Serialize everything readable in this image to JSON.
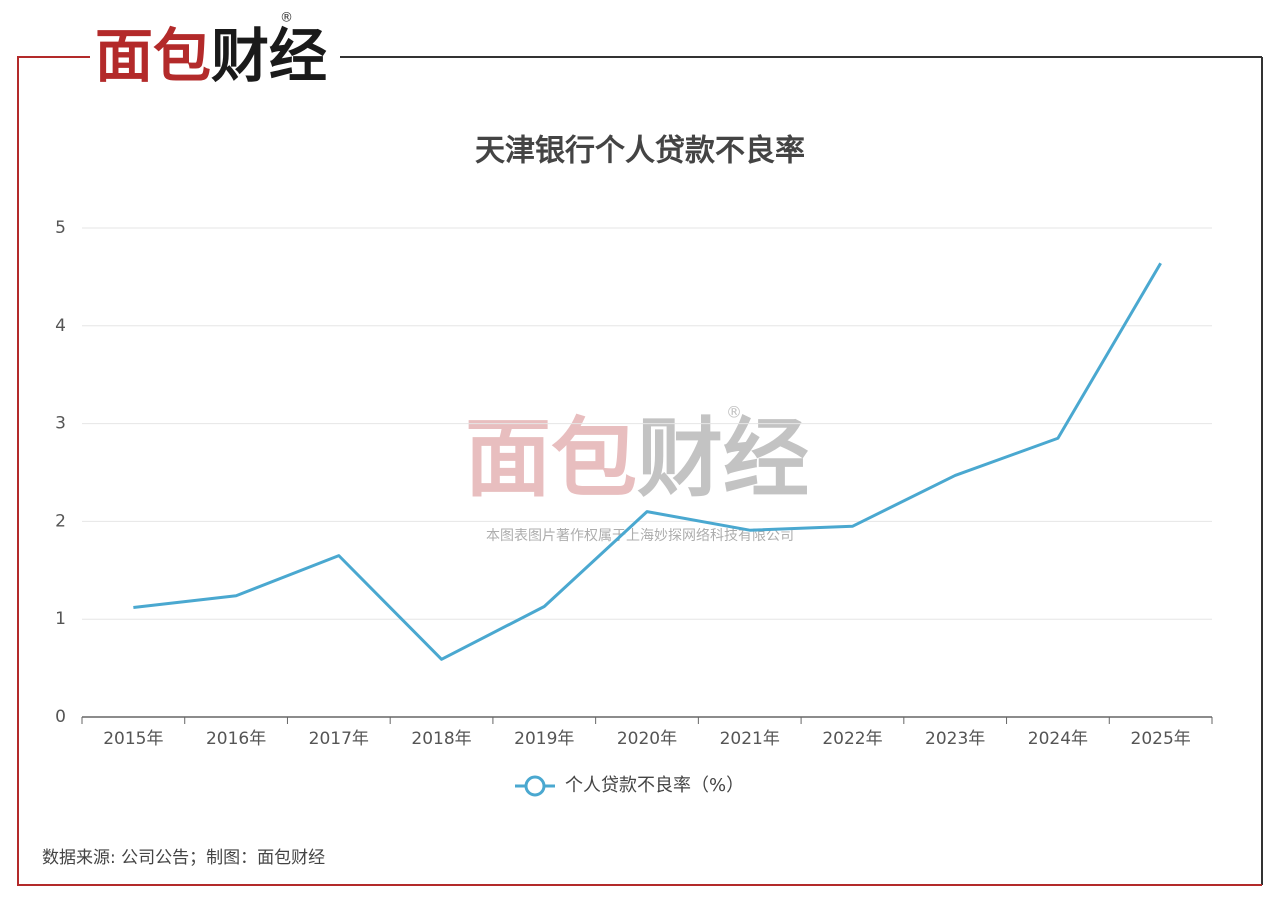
{
  "logo": {
    "words": [
      "面包",
      "财经"
    ],
    "mark": "®"
  },
  "watermark": {
    "words": [
      "面包",
      "财经"
    ],
    "mark": "®",
    "copyright": "本图表图片著作权属于上海妙探网络科技有限公司"
  },
  "source": "数据来源: 公司公告；制图：面包财经",
  "chart_data": {
    "type": "line",
    "title": "天津银行个人贷款不良率",
    "categories": [
      "2015年",
      "2016年",
      "2017年",
      "2018年",
      "2019年",
      "2020年",
      "2021年",
      "2022年",
      "2023年",
      "2024年",
      "2025年"
    ],
    "series": [
      {
        "name": "个人贷款不良率（%）",
        "color": "#4aa8d0",
        "values": [
          1.12,
          1.24,
          1.65,
          0.59,
          1.13,
          2.1,
          1.91,
          1.95,
          2.47,
          2.85,
          4.64
        ]
      }
    ],
    "ylim": [
      0,
      5
    ],
    "yticks": [
      0,
      1,
      2,
      3,
      4,
      5
    ],
    "grid": true
  }
}
